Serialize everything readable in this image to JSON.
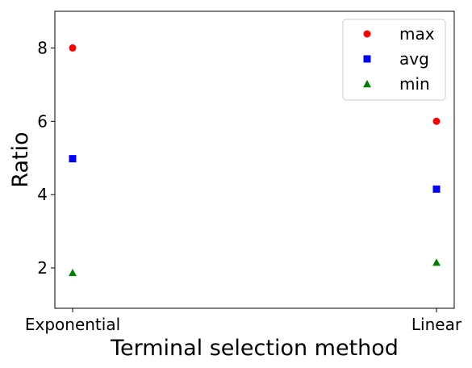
{
  "chart_data": {
    "type": "scatter",
    "title": "",
    "xlabel": "Terminal selection method",
    "ylabel": "Ratio",
    "categories": [
      "Exponential",
      "Linear"
    ],
    "ylim": [
      0.9,
      9.0
    ],
    "yticks": [
      2,
      4,
      6,
      8
    ],
    "grid": false,
    "legend_position": "top-right",
    "series": [
      {
        "name": "max",
        "marker": "circle",
        "color": "#ff0000",
        "values": [
          8.0,
          6.0
        ]
      },
      {
        "name": "avg",
        "marker": "square",
        "color": "#0000ff",
        "values": [
          4.98,
          4.15
        ]
      },
      {
        "name": "min",
        "marker": "triangle",
        "color": "#008000",
        "values": [
          1.87,
          2.15
        ]
      }
    ]
  }
}
